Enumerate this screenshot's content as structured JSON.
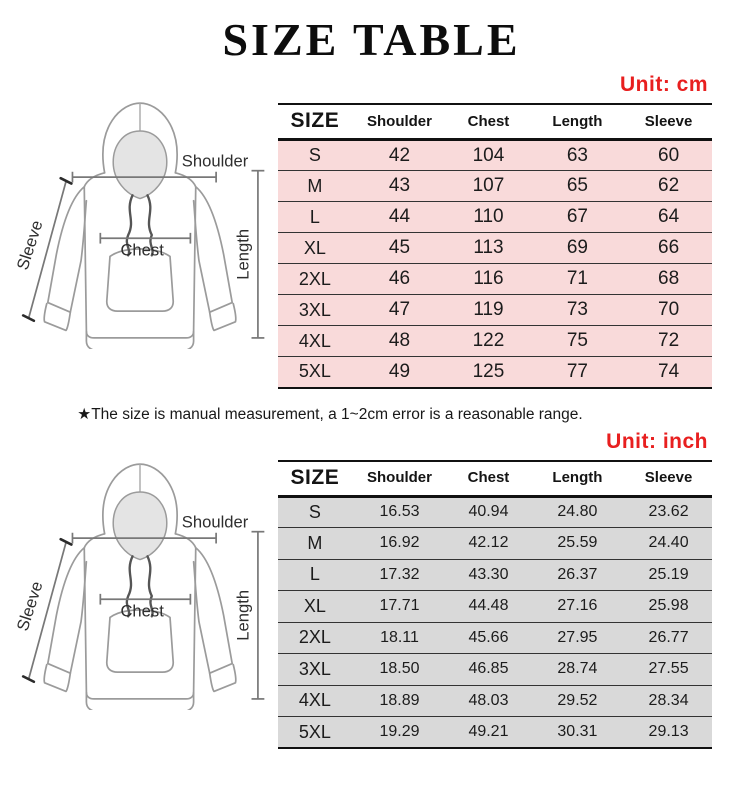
{
  "page": {
    "title": "SIZE TABLE",
    "note": "★The size is manual measurement, a 1~2cm error is a reasonable range."
  },
  "diagram_labels": {
    "shoulder": "Shoulder",
    "sleeve": "Sleeve",
    "chest": "Chest",
    "length": "Length"
  },
  "colors": {
    "accent_red": "#e81f1f",
    "row_pink": "#f9dada",
    "row_gray": "#d9d9d9",
    "line_black": "#111111"
  },
  "chart_data": [
    {
      "type": "table",
      "title": "Unit: cm",
      "headers": [
        "SIZE",
        "Shoulder",
        "Chest",
        "Length",
        "Sleeve"
      ],
      "rows": [
        [
          "S",
          "42",
          "104",
          "63",
          "60"
        ],
        [
          "M",
          "43",
          "107",
          "65",
          "62"
        ],
        [
          "L",
          "44",
          "110",
          "67",
          "64"
        ],
        [
          "XL",
          "45",
          "113",
          "69",
          "66"
        ],
        [
          "2XL",
          "46",
          "116",
          "71",
          "68"
        ],
        [
          "3XL",
          "47",
          "119",
          "73",
          "70"
        ],
        [
          "4XL",
          "48",
          "122",
          "75",
          "72"
        ],
        [
          "5XL",
          "49",
          "125",
          "77",
          "74"
        ]
      ]
    },
    {
      "type": "table",
      "title": "Unit: inch",
      "headers": [
        "SIZE",
        "Shoulder",
        "Chest",
        "Length",
        "Sleeve"
      ],
      "rows": [
        [
          "S",
          "16.53",
          "40.94",
          "24.80",
          "23.62"
        ],
        [
          "M",
          "16.92",
          "42.12",
          "25.59",
          "24.40"
        ],
        [
          "L",
          "17.32",
          "43.30",
          "26.37",
          "25.19"
        ],
        [
          "XL",
          "17.71",
          "44.48",
          "27.16",
          "25.98"
        ],
        [
          "2XL",
          "18.11",
          "45.66",
          "27.95",
          "26.77"
        ],
        [
          "3XL",
          "18.50",
          "46.85",
          "28.74",
          "27.55"
        ],
        [
          "4XL",
          "18.89",
          "48.03",
          "29.52",
          "28.34"
        ],
        [
          "5XL",
          "19.29",
          "49.21",
          "30.31",
          "29.13"
        ]
      ]
    }
  ]
}
